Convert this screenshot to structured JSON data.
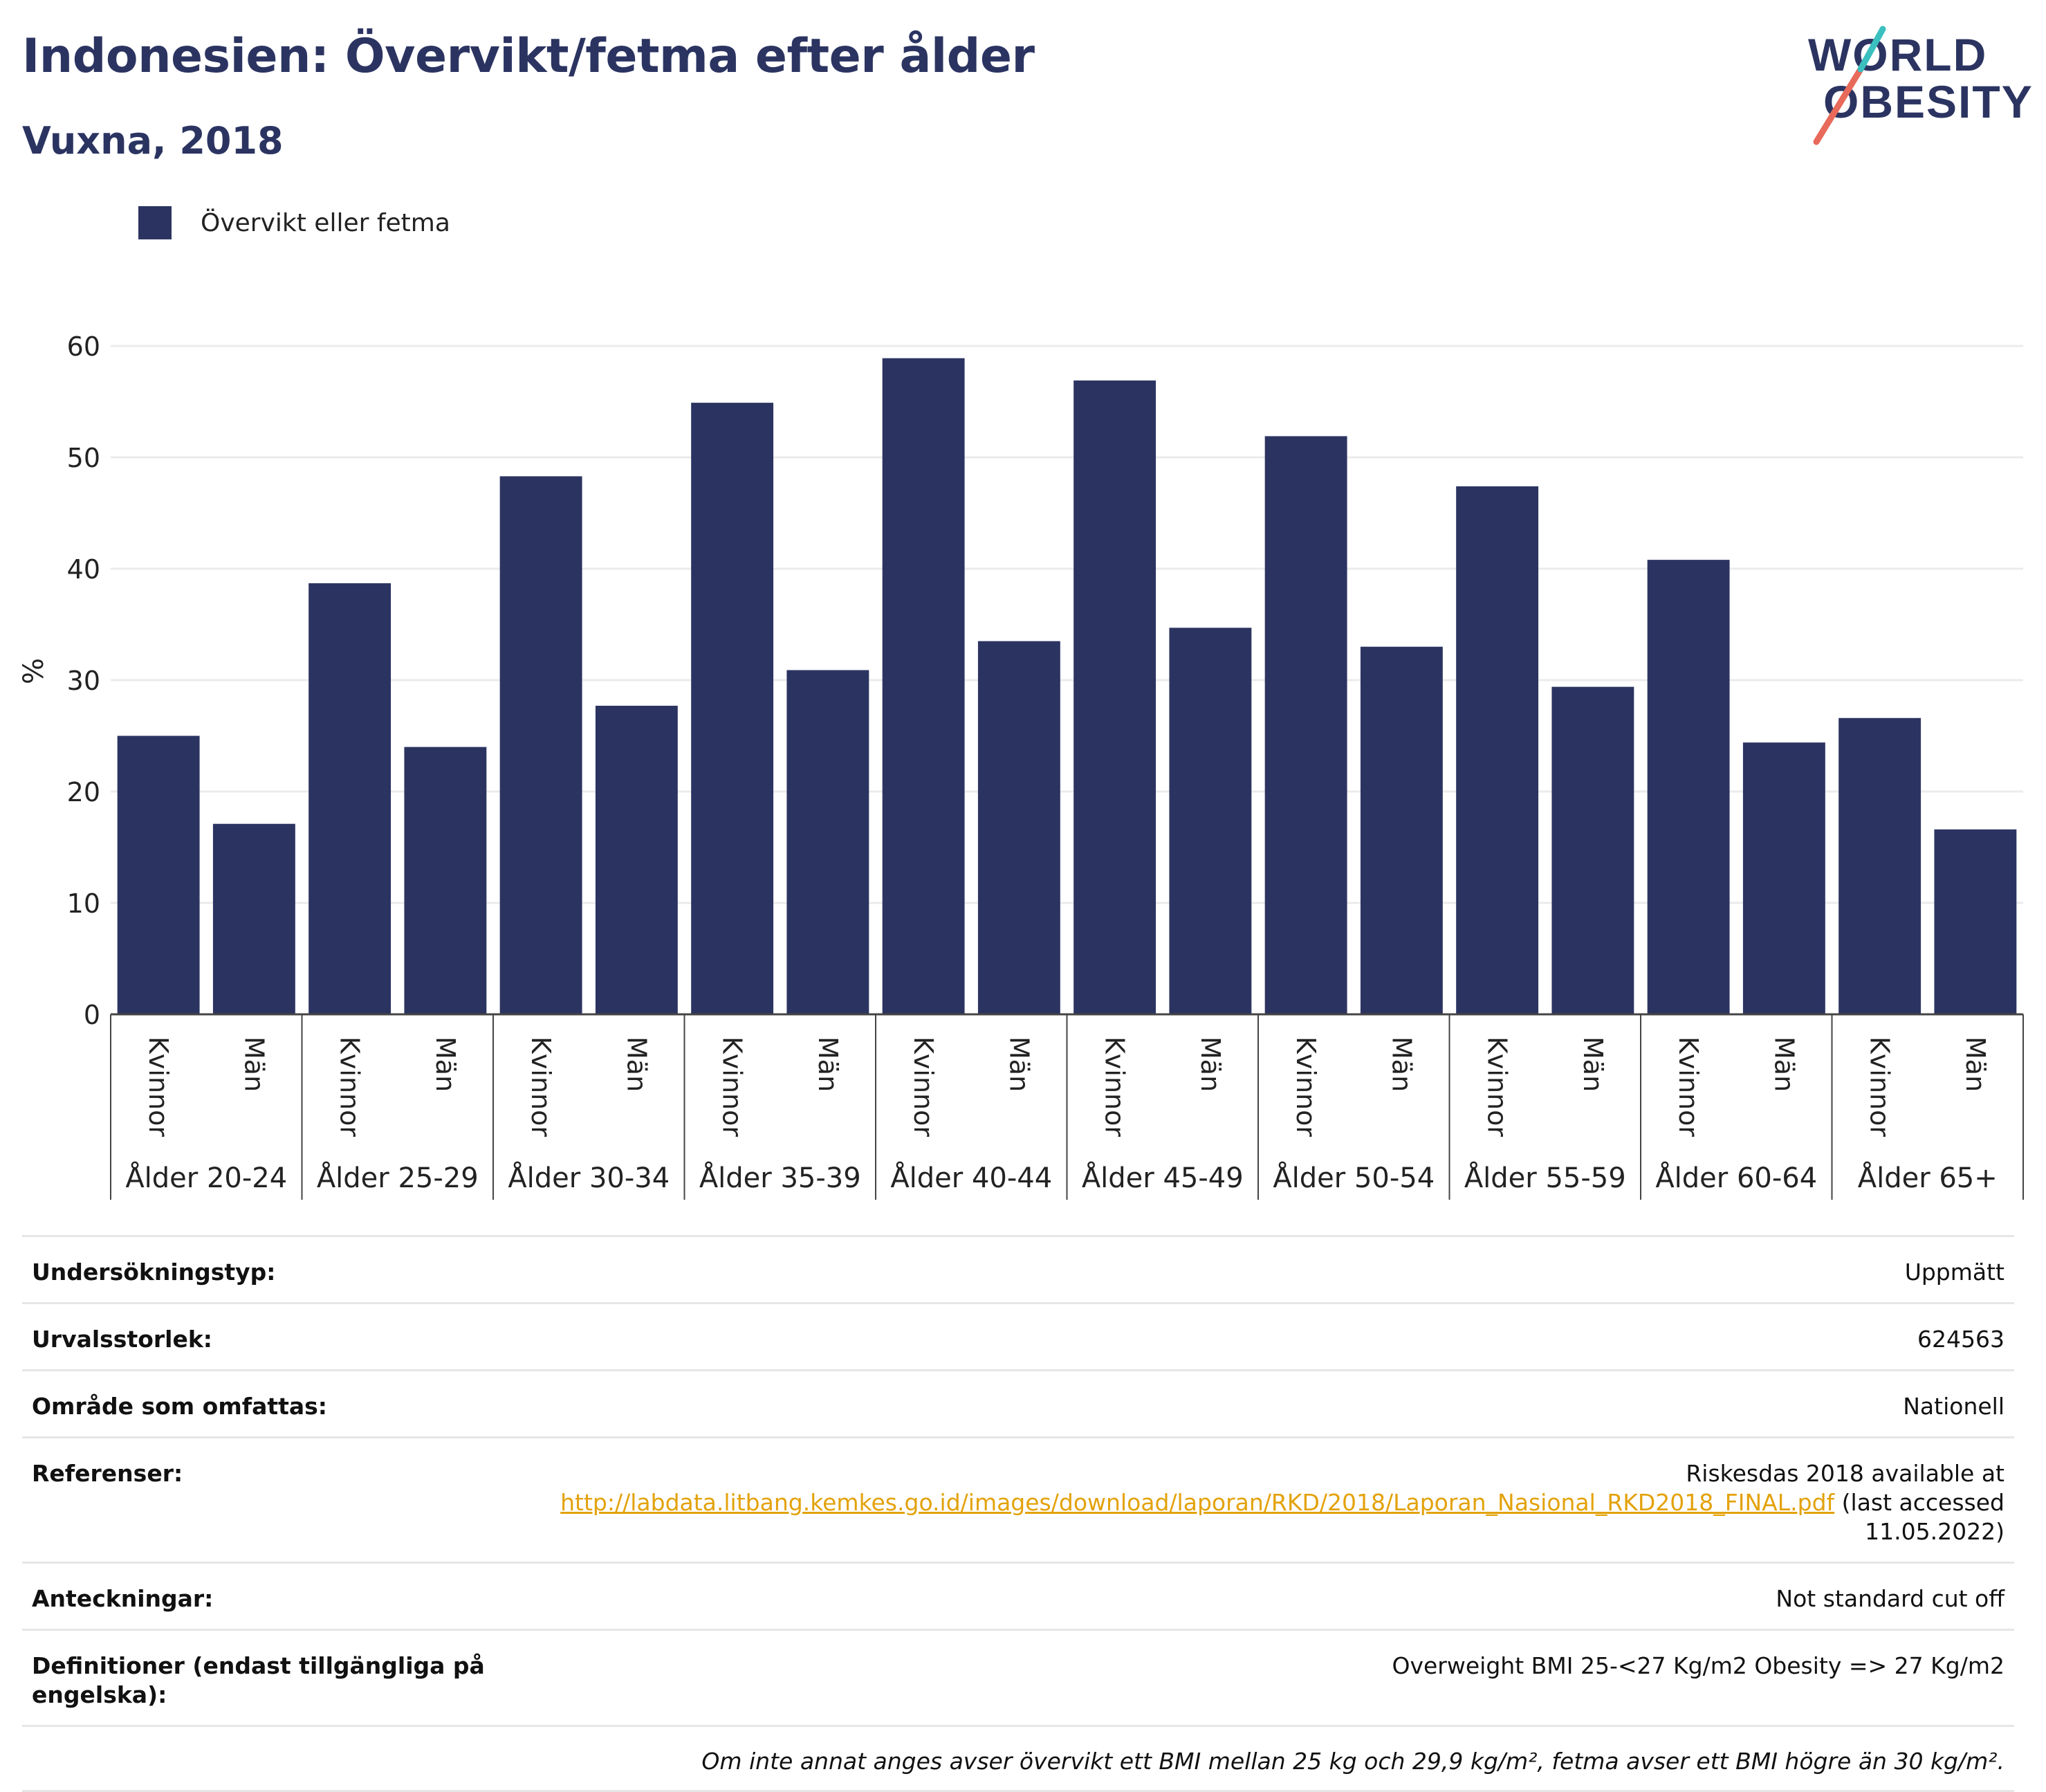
{
  "title": "Indonesien: Övervikt/fetma efter ålder",
  "subtitle": "Vuxna, 2018",
  "logo": {
    "line1": "WORLD",
    "line2": "OBESITY"
  },
  "legend": {
    "label": "Övervikt eller fetma",
    "color": "#2b3461"
  },
  "chart_data": {
    "type": "bar",
    "ylabel": "%",
    "ylim": [
      0,
      60
    ],
    "yticks": [
      0,
      10,
      20,
      30,
      40,
      50,
      60
    ],
    "grid": true,
    "legend_position": "top-left",
    "bar_color": "#2b3461",
    "series": [
      {
        "name": "Övervikt eller fetma"
      }
    ],
    "groups": [
      {
        "label": "Ålder 20-24",
        "bars": [
          {
            "label": "Kvinnor",
            "value": 25.0
          },
          {
            "label": "Män",
            "value": 17.1
          }
        ]
      },
      {
        "label": "Ålder 25-29",
        "bars": [
          {
            "label": "Kvinnor",
            "value": 38.7
          },
          {
            "label": "Män",
            "value": 24.0
          }
        ]
      },
      {
        "label": "Ålder 30-34",
        "bars": [
          {
            "label": "Kvinnor",
            "value": 48.3
          },
          {
            "label": "Män",
            "value": 27.7
          }
        ]
      },
      {
        "label": "Ålder 35-39",
        "bars": [
          {
            "label": "Kvinnor",
            "value": 54.9
          },
          {
            "label": "Män",
            "value": 30.9
          }
        ]
      },
      {
        "label": "Ålder 40-44",
        "bars": [
          {
            "label": "Kvinnor",
            "value": 58.9
          },
          {
            "label": "Män",
            "value": 33.5
          }
        ]
      },
      {
        "label": "Ålder 45-49",
        "bars": [
          {
            "label": "Kvinnor",
            "value": 56.9
          },
          {
            "label": "Män",
            "value": 34.7
          }
        ]
      },
      {
        "label": "Ålder 50-54",
        "bars": [
          {
            "label": "Kvinnor",
            "value": 51.9
          },
          {
            "label": "Män",
            "value": 33.0
          }
        ]
      },
      {
        "label": "Ålder 55-59",
        "bars": [
          {
            "label": "Kvinnor",
            "value": 47.4
          },
          {
            "label": "Män",
            "value": 29.4
          }
        ]
      },
      {
        "label": "Ålder 60-64",
        "bars": [
          {
            "label": "Kvinnor",
            "value": 40.8
          },
          {
            "label": "Män",
            "value": 24.4
          }
        ]
      },
      {
        "label": "Ålder 65+",
        "bars": [
          {
            "label": "Kvinnor",
            "value": 26.6
          },
          {
            "label": "Män",
            "value": 16.6
          }
        ]
      }
    ]
  },
  "meta": {
    "survey_type": {
      "label": "Undersökningstyp:",
      "value": "Uppmätt"
    },
    "sample_size": {
      "label": "Urvalsstorlek:",
      "value": "624563"
    },
    "area": {
      "label": "Område som omfattas:",
      "value": "Nationell"
    },
    "references": {
      "label": "Referenser:",
      "prefix": "Riskesdas 2018 available at",
      "link": "http://labdata.litbang.kemkes.go.id/images/download/laporan/RKD/2018/Laporan_Nasional_RKD2018_FINAL.pdf",
      "suffix1": "(last accessed",
      "suffix2": "11.05.2022)"
    },
    "notes": {
      "label": "Anteckningar:",
      "value": "Not standard cut off"
    },
    "definitions": {
      "label": "Definitioner (endast tillgängliga på engelska):",
      "value": "Overweight BMI 25-<27 Kg/m2 Obesity => 27 Kg/m2"
    },
    "footnote": "Om inte annat anges avser övervikt ett BMI mellan 25 kg och 29,9 kg/m², fetma avser ett BMI högre än 30 kg/m²."
  }
}
